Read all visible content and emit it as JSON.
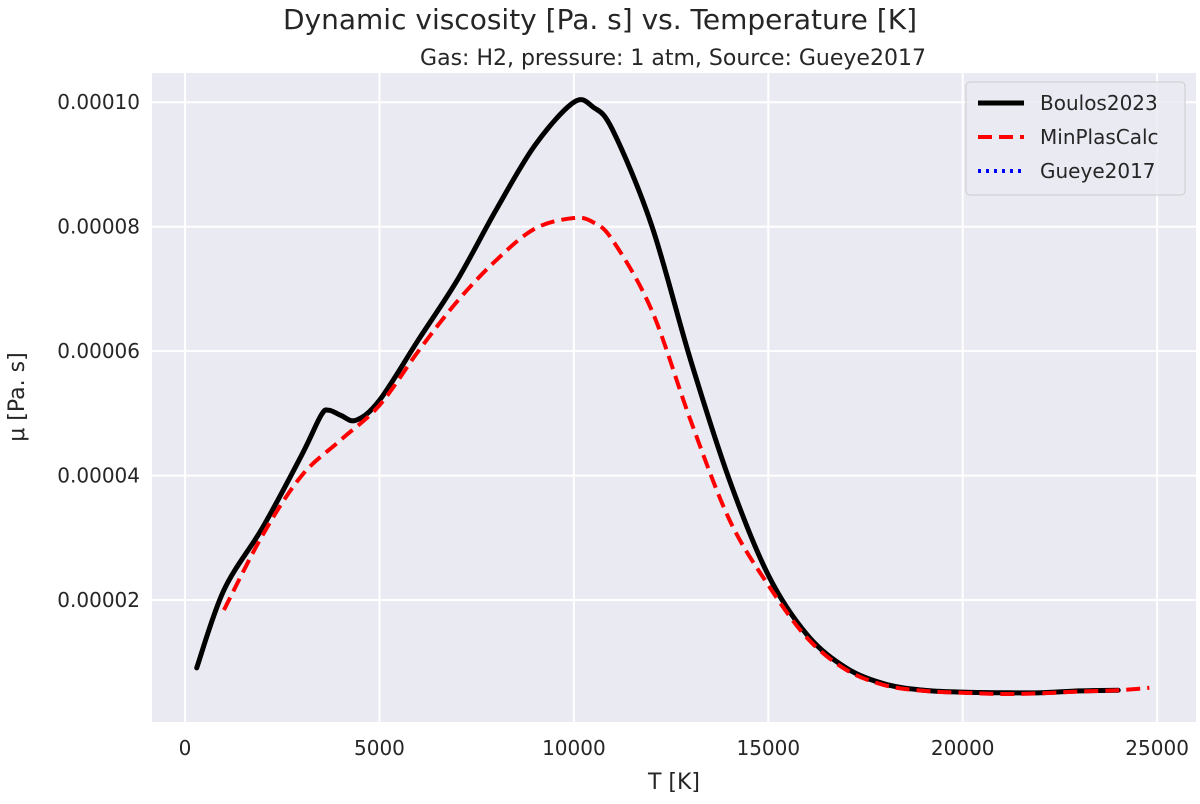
{
  "chart_data": {
    "type": "line",
    "title": "Dynamic viscosity [Pa. s] vs. Temperature [K]",
    "subtitle": "Gas: H2, pressure: 1 atm, Source: Gueye2017",
    "xlabel": "T [K]",
    "ylabel": "μ [Pa. s]",
    "xlim": [
      -850,
      26000
    ],
    "ylim": [
      4e-07,
      0.0001047
    ],
    "xticks": [
      0,
      5000,
      10000,
      15000,
      20000,
      25000
    ],
    "xtick_labels": [
      "0",
      "5000",
      "10000",
      "15000",
      "20000",
      "25000"
    ],
    "yticks": [
      2e-05,
      4e-05,
      6e-05,
      8e-05,
      0.0001
    ],
    "ytick_labels": [
      "0.00002",
      "0.00004",
      "0.00006",
      "0.00008",
      "0.00010"
    ],
    "grid": true,
    "background": "#eaeaf2",
    "legend_position": "top-right",
    "series": [
      {
        "name": "Gueye2017",
        "color": "#0000ff",
        "style": "dotted",
        "x": [
          300,
          1000,
          2000,
          3000,
          3500,
          3700,
          4000,
          4400,
          5000,
          6000,
          7000,
          8000,
          9000,
          10000,
          10500,
          11000,
          12000,
          13000,
          14000,
          15000,
          16000,
          17000,
          18000,
          19000,
          20000,
          21000,
          22000,
          23000,
          24000
        ],
        "y": [
          9.1e-06,
          2.16e-05,
          3.17e-05,
          4.33e-05,
          4.97e-05,
          5.05e-05,
          4.97e-05,
          4.89e-05,
          5.21e-05,
          6.18e-05,
          7.14e-05,
          8.27e-05,
          9.31e-05,
          0.0001,
          9.92e-05,
          9.55e-05,
          8.02e-05,
          5.86e-05,
          3.93e-05,
          2.4e-05,
          1.44e-05,
          9.1e-06,
          6.5e-06,
          5.5e-06,
          5.2e-06,
          5.1e-06,
          5.1e-06,
          5.4e-06,
          5.5e-06
        ]
      },
      {
        "name": "Boulos2023",
        "color": "#000000",
        "style": "solid",
        "x": [
          300,
          1000,
          2000,
          3000,
          3500,
          3700,
          4000,
          4400,
          5000,
          6000,
          7000,
          8000,
          9000,
          10000,
          10500,
          11000,
          12000,
          13000,
          14000,
          15000,
          16000,
          17000,
          18000,
          19000,
          20000,
          21000,
          22000,
          23000,
          24000
        ],
        "y": [
          9.1e-06,
          2.16e-05,
          3.17e-05,
          4.33e-05,
          4.97e-05,
          5.05e-05,
          4.97e-05,
          4.89e-05,
          5.21e-05,
          6.18e-05,
          7.14e-05,
          8.27e-05,
          9.31e-05,
          0.0001,
          9.92e-05,
          9.55e-05,
          8.02e-05,
          5.86e-05,
          3.93e-05,
          2.4e-05,
          1.44e-05,
          9.1e-06,
          6.5e-06,
          5.5e-06,
          5.2e-06,
          5.1e-06,
          5.1e-06,
          5.4e-06,
          5.5e-06
        ]
      },
      {
        "name": "MinPlasCalc",
        "color": "#ff0000",
        "style": "dashed",
        "x": [
          1000,
          2000,
          3000,
          4000,
          5000,
          6000,
          7000,
          8000,
          9000,
          10000,
          10500,
          11000,
          12000,
          13000,
          14000,
          15000,
          16000,
          17000,
          18000,
          19000,
          20000,
          21000,
          22000,
          23000,
          24000,
          24800
        ],
        "y": [
          1.84e-05,
          3.05e-05,
          4e-05,
          4.57e-05,
          5.13e-05,
          6e-05,
          6.8e-05,
          7.46e-05,
          7.97e-05,
          8.14e-05,
          8.07e-05,
          7.78e-05,
          6.66e-05,
          4.89e-05,
          3.29e-05,
          2.24e-05,
          1.39e-05,
          8.8e-06,
          6.3e-06,
          5.4e-06,
          5.1e-06,
          4.9e-06,
          5e-06,
          5.3e-06,
          5.5e-06,
          5.9e-06
        ]
      }
    ],
    "legend_order": [
      "Boulos2023",
      "MinPlasCalc",
      "Gueye2017"
    ]
  }
}
